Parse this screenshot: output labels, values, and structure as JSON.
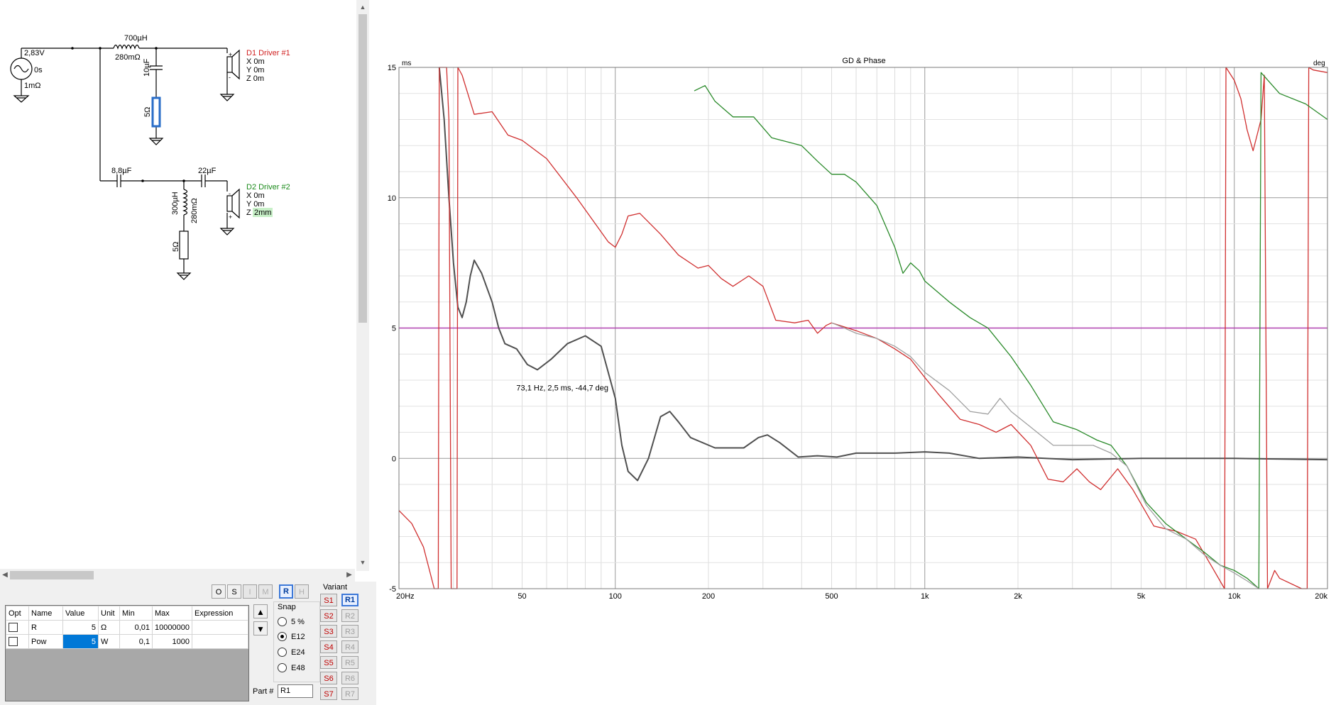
{
  "schematic": {
    "source": {
      "voltage": "2,83V",
      "delay": "0s",
      "resistance": "1mΩ"
    },
    "l1": {
      "value": "700µH",
      "resistance": "280mΩ"
    },
    "c1": {
      "value": "10µF"
    },
    "r1": {
      "value": "5Ω"
    },
    "driver1": {
      "name": "D1 Driver #1",
      "x": "X 0m",
      "y": "Y 0m",
      "z": "Z 0m"
    },
    "c2": {
      "value": "8,8µF"
    },
    "c3": {
      "value": "22µF"
    },
    "l2": {
      "value": "300µH",
      "resistance": "280mΩ"
    },
    "r2": {
      "value": "5Ω"
    },
    "driver2": {
      "name": "D2 Driver #2",
      "x": "X 0m",
      "y": "Y 0m",
      "z_label": "Z",
      "z_value": "2mm"
    },
    "colors": {
      "driver1": "#d02020",
      "driver2": "#1a8a1a",
      "selected_part": "#2a6ec8"
    }
  },
  "toolbar": {
    "o": "O",
    "s": "S",
    "i": "I",
    "m": "M",
    "r": "R",
    "h": "H"
  },
  "grid": {
    "headers": [
      "Opt",
      "Name",
      "Value",
      "Unit",
      "Min",
      "Max",
      "Expression"
    ],
    "rows": [
      {
        "name": "R",
        "value": "5",
        "unit": "Ω",
        "min": "0,01",
        "max": "10000000",
        "expression": ""
      },
      {
        "name": "Pow",
        "value": "5",
        "unit": "W",
        "min": "0,1",
        "max": "1000",
        "expression": ""
      }
    ]
  },
  "move": {
    "up": "▲",
    "down": "▼"
  },
  "snap": {
    "label": "Snap",
    "options": [
      "5 %",
      "E12",
      "E24",
      "E48"
    ],
    "selected": "E12"
  },
  "part": {
    "label": "Part #",
    "value": "R1"
  },
  "variant": {
    "label": "Variant",
    "s": [
      "S1",
      "S2",
      "S3",
      "S4",
      "S5",
      "S6",
      "S7"
    ],
    "r": [
      "R1",
      "R2",
      "R3",
      "R4",
      "R5",
      "R6",
      "R7"
    ],
    "active": "R1"
  },
  "chart_data": {
    "type": "line",
    "title": "GD & Phase",
    "ylabel": "ms",
    "y2label": "deg",
    "xscale": "log",
    "xlim": [
      20,
      20000
    ],
    "ylim": [
      -5,
      15
    ],
    "x_ticks": [
      "20Hz",
      "50",
      "100",
      "200",
      "500",
      "1k",
      "2k",
      "5k",
      "10k",
      "20k"
    ],
    "y_ticks": [
      "15",
      "10",
      "5",
      "0",
      "-5"
    ],
    "y_tick_values": [
      15,
      10,
      5,
      0,
      -5
    ],
    "grid": true,
    "cursor_label": "73,1 Hz, 2,5 ms, -44,7 deg",
    "cursor_point": {
      "x": 73.1,
      "y": 2.5
    },
    "reference_line": {
      "y": 5,
      "color": "#b040b0"
    },
    "series": [
      {
        "color": "#505050",
        "points": [
          [
            27,
            15
          ],
          [
            28,
            13
          ],
          [
            29,
            10
          ],
          [
            30,
            7.5
          ],
          [
            31,
            5.8
          ],
          [
            32,
            5.4
          ],
          [
            33,
            6
          ],
          [
            34,
            7
          ],
          [
            35,
            7.6
          ],
          [
            37,
            7.1
          ],
          [
            40,
            6
          ],
          [
            42,
            5
          ],
          [
            44,
            4.4
          ],
          [
            48,
            4.2
          ],
          [
            52,
            3.6
          ],
          [
            56,
            3.4
          ],
          [
            62,
            3.8
          ],
          [
            70,
            4.4
          ],
          [
            80,
            4.7
          ],
          [
            90,
            4.3
          ],
          [
            100,
            2.3
          ],
          [
            105,
            0.5
          ],
          [
            110,
            -0.5
          ],
          [
            118,
            -0.85
          ],
          [
            128,
            0
          ],
          [
            140,
            1.6
          ],
          [
            150,
            1.8
          ],
          [
            160,
            1.4
          ],
          [
            175,
            0.8
          ],
          [
            210,
            0.4
          ],
          [
            260,
            0.4
          ],
          [
            290,
            0.8
          ],
          [
            310,
            0.9
          ],
          [
            340,
            0.6
          ],
          [
            390,
            0.05
          ],
          [
            450,
            0.1
          ],
          [
            520,
            0.05
          ],
          [
            600,
            0.2
          ],
          [
            800,
            0.2
          ],
          [
            1000,
            0.25
          ],
          [
            1200,
            0.2
          ],
          [
            1500,
            0
          ],
          [
            2000,
            0.05
          ],
          [
            3000,
            -0.05
          ],
          [
            5000,
            0
          ],
          [
            10000,
            0
          ],
          [
            20000,
            -0.05
          ]
        ]
      },
      {
        "color": "#d03030",
        "points": [
          [
            20,
            -2
          ],
          [
            22,
            -2.5
          ],
          [
            24,
            -3.4
          ],
          [
            26,
            -5
          ],
          [
            26.8,
            -5
          ],
          [
            27,
            15
          ],
          [
            28.5,
            15
          ],
          [
            29,
            13
          ],
          [
            29.5,
            -5
          ],
          [
            30.8,
            -5
          ],
          [
            31,
            15
          ],
          [
            32,
            14.7
          ],
          [
            35,
            13.2
          ],
          [
            40,
            13.3
          ],
          [
            45,
            12.4
          ],
          [
            50,
            12.2
          ],
          [
            60,
            11.5
          ],
          [
            75,
            10
          ],
          [
            95,
            8.3
          ],
          [
            100,
            8.1
          ],
          [
            105,
            8.6
          ],
          [
            110,
            9.3
          ],
          [
            120,
            9.4
          ],
          [
            140,
            8.6
          ],
          [
            160,
            7.8
          ],
          [
            185,
            7.3
          ],
          [
            200,
            7.4
          ],
          [
            220,
            6.9
          ],
          [
            240,
            6.6
          ],
          [
            270,
            7
          ],
          [
            300,
            6.6
          ],
          [
            330,
            5.3
          ],
          [
            380,
            5.2
          ],
          [
            420,
            5.3
          ],
          [
            450,
            4.8
          ],
          [
            480,
            5.1
          ],
          [
            500,
            5.2
          ],
          [
            600,
            4.9
          ],
          [
            700,
            4.6
          ],
          [
            800,
            4.2
          ],
          [
            900,
            3.8
          ],
          [
            1000,
            3.1
          ],
          [
            1100,
            2.5
          ],
          [
            1300,
            1.5
          ],
          [
            1500,
            1.3
          ],
          [
            1700,
            1.0
          ],
          [
            1900,
            1.3
          ],
          [
            2200,
            0.5
          ],
          [
            2500,
            -0.8
          ],
          [
            2800,
            -0.9
          ],
          [
            3100,
            -0.4
          ],
          [
            3400,
            -0.9
          ],
          [
            3700,
            -1.2
          ],
          [
            4200,
            -0.4
          ],
          [
            4700,
            -1.2
          ],
          [
            5500,
            -2.6
          ],
          [
            6500,
            -2.8
          ],
          [
            7500,
            -3.1
          ],
          [
            8500,
            -4.2
          ],
          [
            9300,
            -5
          ],
          [
            9400,
            15
          ],
          [
            10000,
            14.5
          ],
          [
            10500,
            13.8
          ],
          [
            11000,
            12.6
          ],
          [
            11500,
            11.8
          ],
          [
            12200,
            13
          ],
          [
            12500,
            14.7
          ],
          [
            12800,
            -5
          ],
          [
            13500,
            -4.3
          ],
          [
            14000,
            -4.6
          ],
          [
            16500,
            -5
          ],
          [
            17200,
            -5
          ],
          [
            17400,
            15
          ],
          [
            18000,
            14.9
          ],
          [
            20000,
            14.8
          ]
        ]
      },
      {
        "color": "#2a8a2a",
        "points": [
          [
            180,
            14.1
          ],
          [
            195,
            14.3
          ],
          [
            210,
            13.7
          ],
          [
            240,
            13.1
          ],
          [
            280,
            13.1
          ],
          [
            320,
            12.3
          ],
          [
            400,
            12
          ],
          [
            450,
            11.4
          ],
          [
            500,
            10.9
          ],
          [
            550,
            10.9
          ],
          [
            600,
            10.6
          ],
          [
            700,
            9.7
          ],
          [
            800,
            8.1
          ],
          [
            850,
            7.1
          ],
          [
            900,
            7.5
          ],
          [
            960,
            7.2
          ],
          [
            1000,
            6.8
          ],
          [
            1200,
            6
          ],
          [
            1400,
            5.4
          ],
          [
            1600,
            5
          ],
          [
            1900,
            3.9
          ],
          [
            2200,
            2.8
          ],
          [
            2600,
            1.4
          ],
          [
            3100,
            1.1
          ],
          [
            3600,
            0.7
          ],
          [
            4000,
            0.5
          ],
          [
            4500,
            -0.3
          ],
          [
            5200,
            -1.7
          ],
          [
            6000,
            -2.5
          ],
          [
            7000,
            -3.1
          ],
          [
            8000,
            -3.6
          ],
          [
            9000,
            -4.1
          ],
          [
            10000,
            -4.3
          ],
          [
            11000,
            -4.6
          ],
          [
            11500,
            -4.8
          ],
          [
            12000,
            -5
          ],
          [
            12200,
            14.8
          ],
          [
            14000,
            14
          ],
          [
            17000,
            13.6
          ],
          [
            20000,
            13
          ]
        ]
      },
      {
        "color": "#a0a0a0",
        "points": [
          [
            500,
            5.2
          ],
          [
            550,
            5.0
          ],
          [
            600,
            4.8
          ],
          [
            700,
            4.6
          ],
          [
            800,
            4.3
          ],
          [
            900,
            3.9
          ],
          [
            1000,
            3.3
          ],
          [
            1200,
            2.6
          ],
          [
            1400,
            1.8
          ],
          [
            1600,
            1.7
          ],
          [
            1750,
            2.3
          ],
          [
            1900,
            1.8
          ],
          [
            2200,
            1.2
          ],
          [
            2600,
            0.5
          ],
          [
            3000,
            0.5
          ],
          [
            3500,
            0.5
          ],
          [
            4000,
            0.2
          ],
          [
            4500,
            -0.3
          ],
          [
            5200,
            -1.8
          ],
          [
            6000,
            -2.7
          ],
          [
            7000,
            -3.1
          ],
          [
            8000,
            -3.7
          ],
          [
            9000,
            -4.1
          ],
          [
            10000,
            -4.4
          ],
          [
            11000,
            -4.7
          ],
          [
            12000,
            -5
          ]
        ]
      }
    ]
  }
}
